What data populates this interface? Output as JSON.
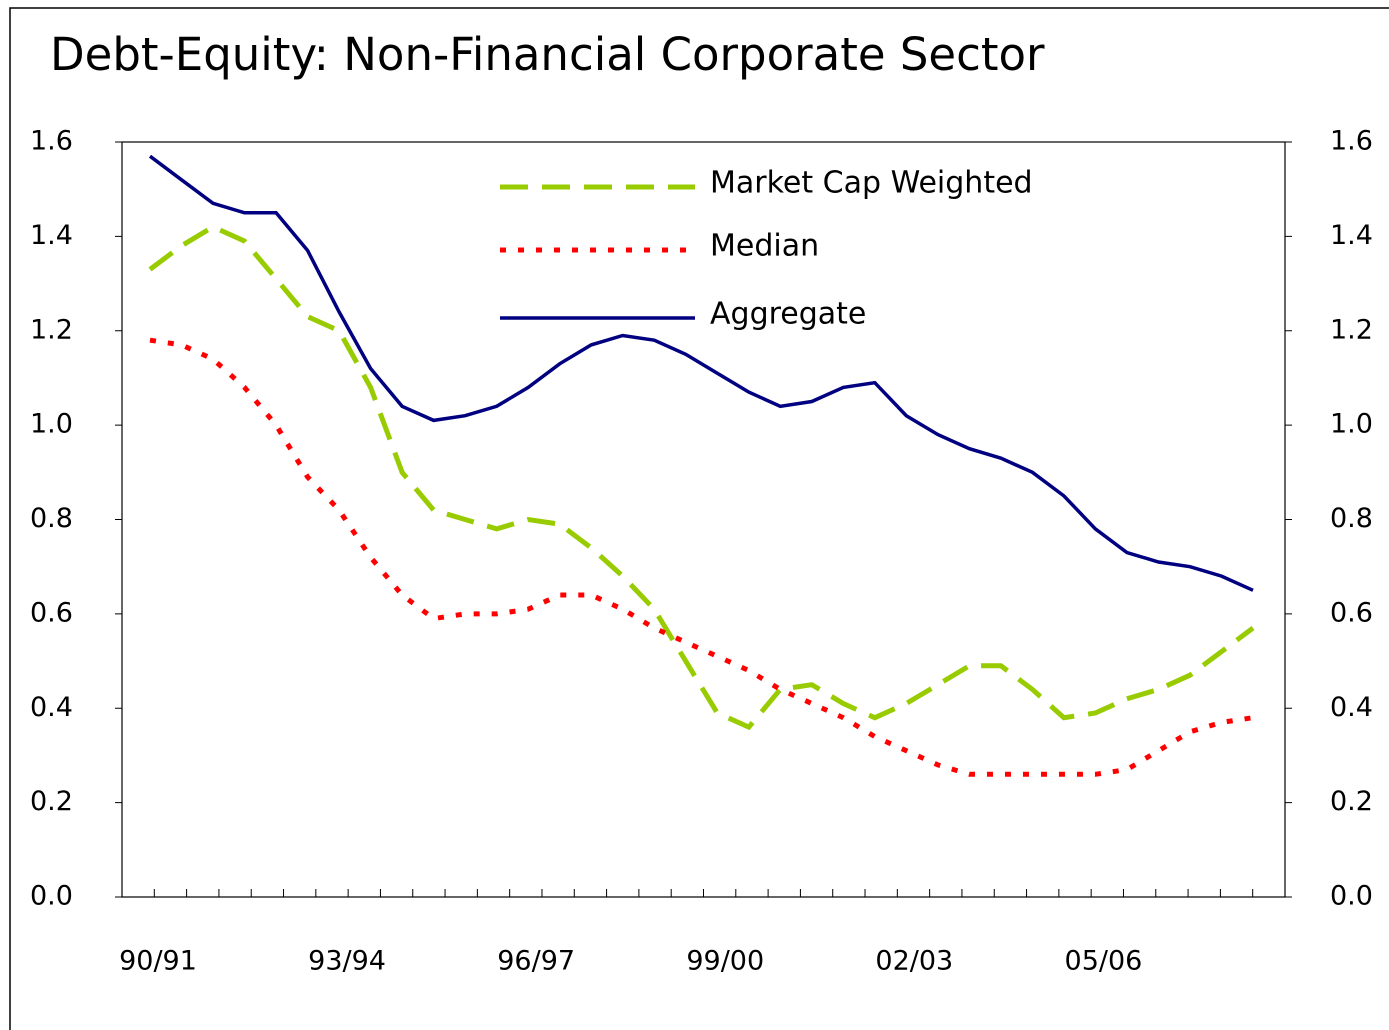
{
  "chart_data": {
    "type": "line",
    "title": "Debt-Equity:  Non-Financial Corporate Sector",
    "categories": [
      "90/91",
      null,
      null,
      null,
      null,
      null,
      "93/94",
      null,
      null,
      null,
      null,
      null,
      "96/97",
      null,
      null,
      null,
      null,
      null,
      "99/00",
      null,
      null,
      null,
      null,
      null,
      "02/03",
      null,
      null,
      null,
      null,
      null,
      "05/06",
      null,
      null,
      null,
      null,
      null
    ],
    "series": [
      {
        "name": "Market Cap Weighted",
        "color": "#99cc00",
        "dash": "28 14",
        "values": [
          1.33,
          1.38,
          1.42,
          1.39,
          1.31,
          1.23,
          1.2,
          1.08,
          0.9,
          0.82,
          0.8,
          0.78,
          0.8,
          0.79,
          0.74,
          0.68,
          0.61,
          0.5,
          0.39,
          0.36,
          0.44,
          0.45,
          0.41,
          0.38,
          0.41,
          0.45,
          0.49,
          0.49,
          0.44,
          0.38,
          0.39,
          0.42,
          0.44,
          0.47,
          0.52,
          0.57
        ]
      },
      {
        "name": "Median",
        "color": "#ff0000",
        "dash": "6 12",
        "values": [
          1.18,
          1.17,
          1.14,
          1.08,
          1.0,
          0.89,
          0.82,
          0.72,
          0.64,
          0.59,
          0.6,
          0.6,
          0.61,
          0.64,
          0.64,
          0.61,
          0.57,
          0.54,
          0.51,
          0.48,
          0.44,
          0.41,
          0.38,
          0.34,
          0.31,
          0.28,
          0.26,
          0.26,
          0.26,
          0.26,
          0.26,
          0.27,
          0.31,
          0.35,
          0.37,
          0.38
        ]
      },
      {
        "name": "Aggregate",
        "color": "#000080",
        "dash": "none",
        "values": [
          1.57,
          1.52,
          1.47,
          1.45,
          1.45,
          1.37,
          1.24,
          1.12,
          1.04,
          1.01,
          1.02,
          1.04,
          1.08,
          1.13,
          1.17,
          1.19,
          1.18,
          1.15,
          1.11,
          1.07,
          1.04,
          1.05,
          1.08,
          1.09,
          1.02,
          0.98,
          0.95,
          0.93,
          0.9,
          0.85,
          0.78,
          0.73,
          0.71,
          0.7,
          0.68,
          0.65
        ]
      }
    ],
    "ylim": [
      0,
      1.6
    ],
    "yticks": [
      {
        "value": 0,
        "label": "0.0"
      },
      0.2,
      0.4,
      0.6,
      0.8,
      {
        "value": 1,
        "label": "1.0"
      },
      1.2,
      1.4,
      1.6
    ],
    "y2lim": [
      0,
      1.6
    ],
    "y2ticks": [
      {
        "value": 0,
        "label": "0.0"
      },
      0.2,
      0.4,
      0.6,
      0.8,
      {
        "value": 1,
        "label": "1.0"
      },
      1.2,
      1.4,
      1.6
    ]
  }
}
